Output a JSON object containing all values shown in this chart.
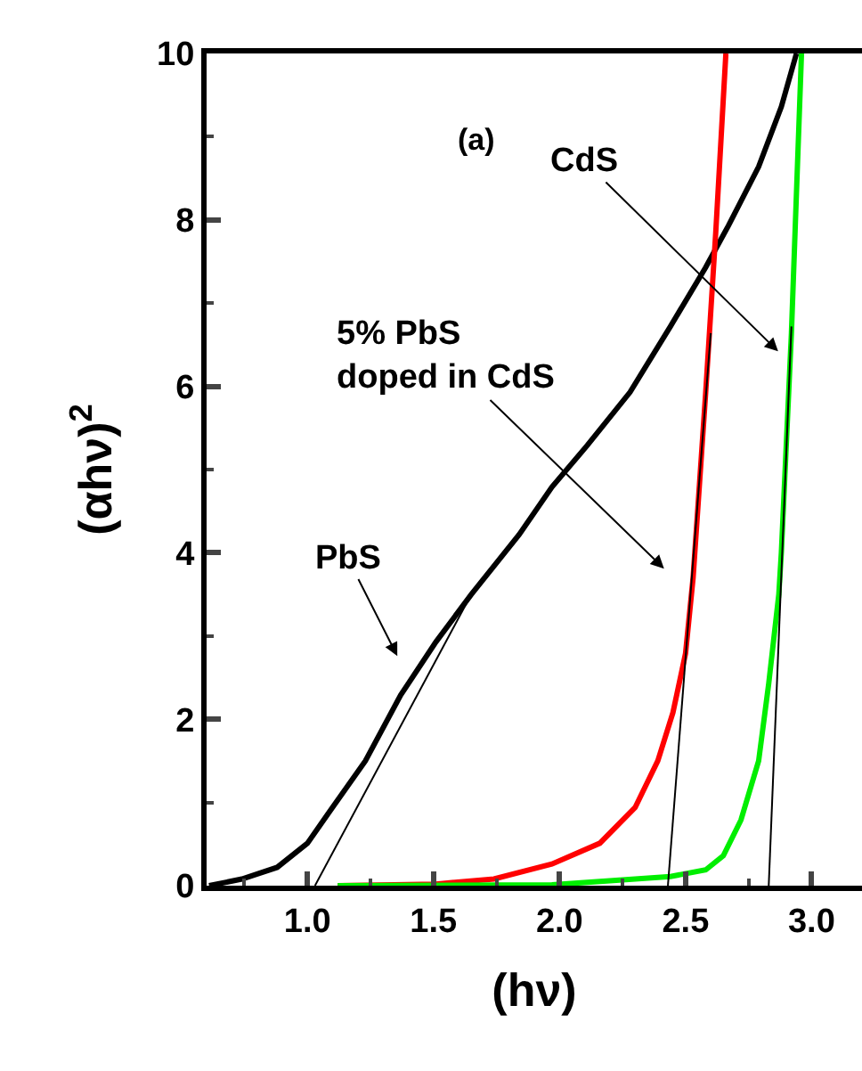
{
  "chart_data": {
    "type": "line",
    "xlabel": "(hν)",
    "ylabel": "(αhν)$^{2}$",
    "xlim": [
      0.6,
      3.2
    ],
    "xticks": [
      {
        "value": 1,
        "label": "1.0"
      },
      1.5,
      {
        "value": 2,
        "label": "2.0"
      },
      2.5,
      {
        "value": 3,
        "label": "3.0"
      }
    ],
    "ylim": [
      0,
      10
    ],
    "yticks": [
      0,
      2,
      4,
      6,
      8,
      10
    ],
    "marker": "none",
    "line_style": "solid",
    "annotations": [
      "(a)",
      "CdS",
      "5% PbS\ndoped in CdS",
      "PbS"
    ],
    "series": [
      {
        "color": "#000000",
        "x": [
          0.61,
          0.74,
          0.88,
          1.0,
          1.09,
          1.23,
          1.37,
          1.51,
          1.65,
          1.84,
          1.97,
          2.11,
          2.28,
          2.44,
          2.58,
          2.67,
          2.79,
          2.88,
          2.94
        ],
        "values": [
          0,
          0.08,
          0.22,
          0.51,
          0.9,
          1.5,
          2.29,
          2.93,
          3.5,
          4.22,
          4.79,
          5.29,
          5.93,
          6.72,
          7.43,
          7.93,
          8.64,
          9.36,
          10
        ]
      },
      {
        "color": "#ff0000",
        "x": [
          1.12,
          1.51,
          1.74,
          1.97,
          2.16,
          2.3,
          2.39,
          2.45,
          2.5,
          2.53,
          2.58,
          2.62,
          2.66
        ],
        "values": [
          0,
          0.02,
          0.08,
          0.26,
          0.51,
          0.94,
          1.5,
          2.08,
          2.79,
          3.7,
          5.93,
          7.86,
          10
        ]
      },
      {
        "color": "#00ee00",
        "x": [
          1.12,
          1.97,
          2.44,
          2.58,
          2.65,
          2.72,
          2.79,
          2.83,
          2.87,
          2.88,
          2.92,
          2.96
        ],
        "values": [
          0,
          0.01,
          0.11,
          0.19,
          0.36,
          0.79,
          1.5,
          2.43,
          3.5,
          4,
          6.64,
          10
        ]
      },
      {
        "color": "#000000",
        "x": [
          1.03,
          1.65
        ],
        "values": [
          0,
          3.5
        ]
      },
      {
        "color": "#000000",
        "x": [
          2.43,
          2.6
        ],
        "values": [
          0,
          6.64
        ]
      },
      {
        "color": "#000000",
        "x": [
          2.83,
          2.92
        ],
        "values": [
          0,
          6.72
        ]
      }
    ]
  }
}
